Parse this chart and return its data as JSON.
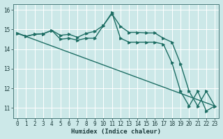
{
  "xlabel": "Humidex (Indice chaleur)",
  "bg_color": "#cce8e8",
  "grid_color": "#ffffff",
  "line_color": "#1e6e64",
  "xlim": [
    -0.5,
    23.5
  ],
  "ylim": [
    10.5,
    16.3
  ],
  "yticks": [
    11,
    12,
    13,
    14,
    15,
    16
  ],
  "xticks": [
    0,
    1,
    2,
    3,
    4,
    5,
    6,
    7,
    8,
    9,
    10,
    11,
    12,
    13,
    14,
    15,
    16,
    17,
    18,
    19,
    20,
    21,
    22,
    23
  ],
  "series1_x": [
    0,
    1,
    2,
    3,
    4,
    5,
    6,
    7,
    8,
    9,
    10,
    11,
    12,
    13,
    14,
    15,
    16,
    17,
    18,
    19,
    20,
    21,
    22,
    23
  ],
  "series1_y": [
    14.8,
    14.65,
    14.75,
    14.78,
    14.95,
    14.7,
    14.75,
    14.6,
    14.8,
    14.9,
    15.2,
    15.8,
    15.15,
    14.85,
    14.85,
    14.82,
    14.82,
    14.55,
    14.35,
    13.25,
    11.85,
    11.1,
    11.85,
    11.1
  ],
  "series2_x": [
    0,
    1,
    2,
    3,
    4,
    5,
    6,
    7,
    8,
    9,
    10,
    11,
    12,
    13,
    14,
    15,
    16,
    17,
    18,
    19,
    20,
    21,
    22,
    23
  ],
  "series2_y": [
    14.8,
    14.65,
    14.75,
    14.78,
    14.95,
    14.5,
    14.55,
    14.45,
    14.55,
    14.55,
    15.2,
    15.85,
    14.55,
    14.35,
    14.35,
    14.35,
    14.35,
    14.25,
    13.3,
    11.85,
    11.1,
    11.85,
    10.85,
    11.1
  ],
  "series3_x": [
    0,
    23
  ],
  "series3_y": [
    14.8,
    11.1
  ],
  "marker_size": 2.5,
  "linewidth": 1.0
}
